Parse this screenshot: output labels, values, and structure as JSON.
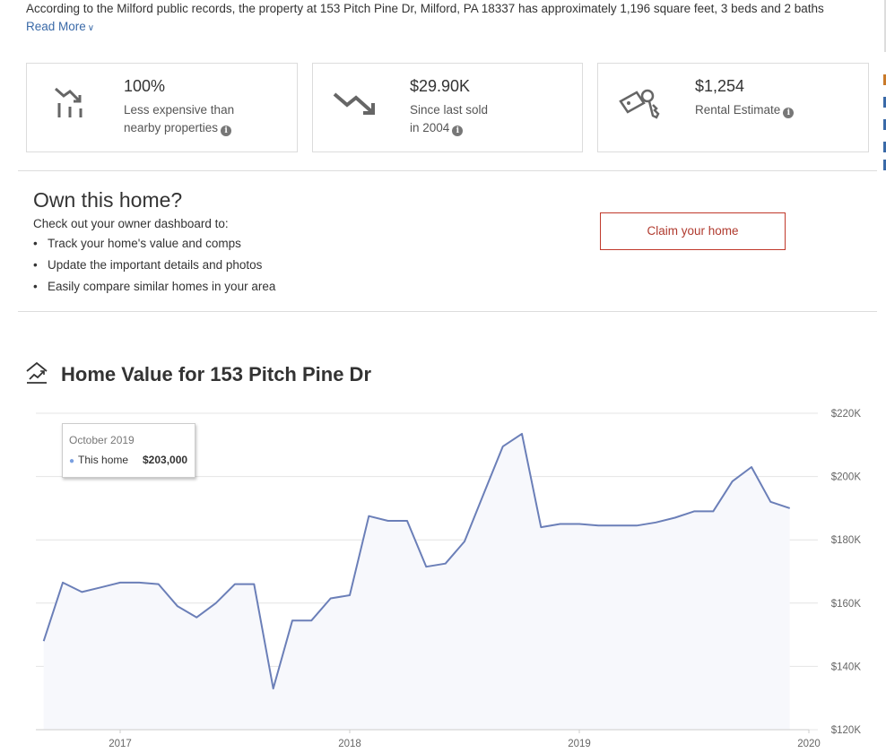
{
  "intro": {
    "text": "According to the Milford public records, the property at 153 Pitch Pine Dr, Milford, PA 18337 has approximately 1,196 square feet, 3 beds and 2 baths",
    "read_more": "Read More"
  },
  "stats": [
    {
      "value": "100%",
      "label_line1": "Less expensive than",
      "label_line2": "nearby properties",
      "icon": "price-comparison-icon"
    },
    {
      "value": "$29.90K",
      "label_line1": "Since last sold",
      "label_line2": "in 2004",
      "icon": "trend-down-icon"
    },
    {
      "value": "$1,254",
      "label_line1": "Rental Estimate",
      "label_line2": "",
      "icon": "key-icon"
    }
  ],
  "own": {
    "title": "Own this home?",
    "subtitle": "Check out your owner dashboard to:",
    "items": [
      "Track your home's value and comps",
      "Update the important details and photos",
      "Easily compare similar homes in your area"
    ],
    "claim_button": "Claim your home"
  },
  "home_value": {
    "title": "Home Value for 153 Pitch Pine Dr",
    "icon": "house-chart-icon"
  },
  "tooltip": {
    "date": "October 2019",
    "series": "This home",
    "value": "$203,000"
  },
  "colors": {
    "line": "#6b7fb8",
    "fill": "#f7f8fc",
    "accent_red": "#c0392b",
    "link_blue": "#3a6aa8"
  },
  "chart_data": {
    "type": "area",
    "title": "Home Value for 153 Pitch Pine Dr",
    "xlabel": "",
    "ylabel": "",
    "x_ticks": [
      "2017",
      "2018",
      "2019",
      "2020"
    ],
    "y_ticks": [
      "$220K",
      "$200K",
      "$180K",
      "$160K",
      "$140K",
      "$120K"
    ],
    "ylim": [
      120000,
      220000
    ],
    "grid": true,
    "series": [
      {
        "name": "This home",
        "points": [
          [
            "2016-09",
            148000
          ],
          [
            "2016-10",
            166500
          ],
          [
            "2016-11",
            163500
          ],
          [
            "2016-12",
            165000
          ],
          [
            "2017-01",
            166500
          ],
          [
            "2017-02",
            166500
          ],
          [
            "2017-03",
            166000
          ],
          [
            "2017-04",
            159000
          ],
          [
            "2017-05",
            155500
          ],
          [
            "2017-06",
            160000
          ],
          [
            "2017-07",
            166000
          ],
          [
            "2017-08",
            166000
          ],
          [
            "2017-09",
            133000
          ],
          [
            "2017-10",
            154500
          ],
          [
            "2017-11",
            154500
          ],
          [
            "2017-12",
            161500
          ],
          [
            "2018-01",
            162500
          ],
          [
            "2018-02",
            187500
          ],
          [
            "2018-03",
            186000
          ],
          [
            "2018-04",
            186000
          ],
          [
            "2018-05",
            171500
          ],
          [
            "2018-06",
            172500
          ],
          [
            "2018-07",
            179500
          ],
          [
            "2018-08",
            194500
          ],
          [
            "2018-09",
            209500
          ],
          [
            "2018-10",
            213500
          ],
          [
            "2018-11",
            184000
          ],
          [
            "2018-12",
            185000
          ],
          [
            "2019-01",
            185000
          ],
          [
            "2019-02",
            184500
          ],
          [
            "2019-03",
            184500
          ],
          [
            "2019-04",
            184500
          ],
          [
            "2019-05",
            185500
          ],
          [
            "2019-06",
            187000
          ],
          [
            "2019-07",
            189000
          ],
          [
            "2019-08",
            189000
          ],
          [
            "2019-09",
            198500
          ],
          [
            "2019-10",
            203000
          ],
          [
            "2019-11",
            192000
          ],
          [
            "2019-12",
            190000
          ]
        ]
      }
    ]
  }
}
